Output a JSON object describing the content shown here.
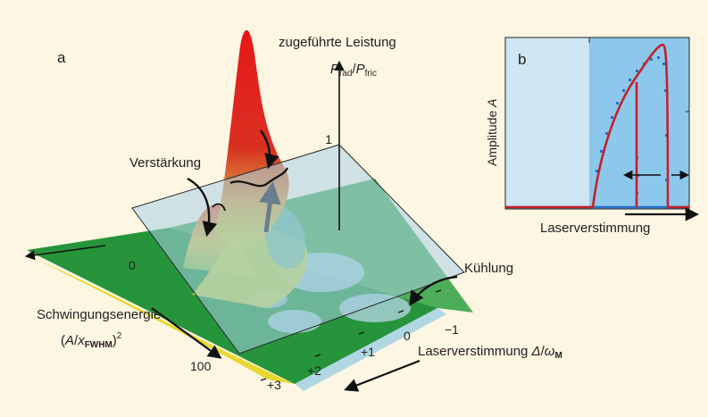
{
  "panel_a": {
    "letter": "a",
    "z_axis": {
      "title_line1": "zugeführte Leistung",
      "ratio_num": "P",
      "ratio_num_sub": "rad",
      "ratio_sep": "/",
      "ratio_den": "P",
      "ratio_den_sub": "fric",
      "tick": "1"
    },
    "labels": {
      "gain": "Verstärkung",
      "cooling": "Kühlung"
    },
    "energy_axis": {
      "title": "Schwingungsenergie",
      "unit_open": "(",
      "unit_a": "A",
      "unit_slash": "/",
      "unit_x": "x",
      "unit_x_sub": "FWHM",
      "unit_close": ")",
      "unit_exp": "2",
      "tick_start": "0",
      "tick_end": "100"
    },
    "detuning_axis": {
      "title_text": "Laserverstimmung ",
      "title_delta": "Δ",
      "title_slash": "/",
      "title_omega": "ω",
      "title_sub": "M",
      "ticks": [
        "−1",
        "0",
        "+1",
        "+2",
        "+3"
      ]
    }
  },
  "panel_b": {
    "letter": "b",
    "ylabel": "Amplitude ",
    "ylabel_var": "A",
    "xlabel": "Laserverstimmung"
  },
  "colors": {
    "background": "#fdf6e3",
    "surface_green": "#2e9b3a",
    "peak_red": "#e02020",
    "plane_blue": "#a9cfe6",
    "panel_b_light": "#cfe6f4",
    "panel_b_mid": "#8cc8ec",
    "curve_red": "#c4202a",
    "points_blue": "#2a6fc8"
  }
}
